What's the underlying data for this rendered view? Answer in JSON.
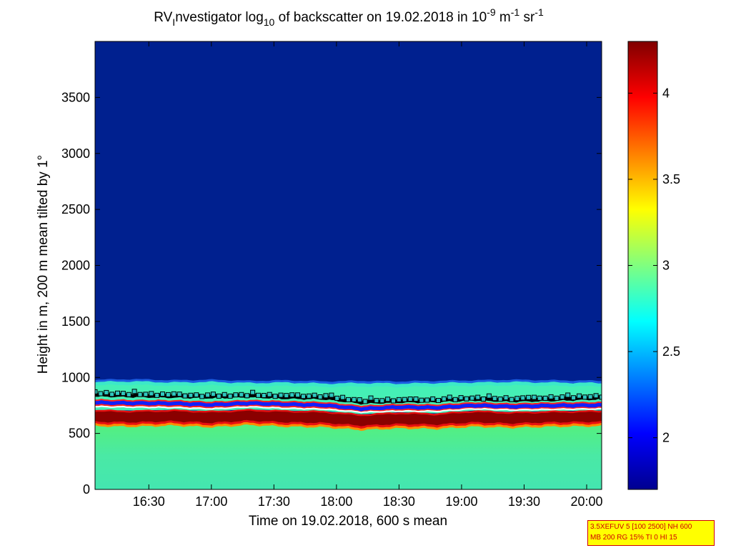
{
  "chart_data": {
    "type": "heatmap",
    "title": {
      "prefix": "RV",
      "sub1": "I",
      "part2": "nvestigator log",
      "sub2": "10",
      "part3": " of backscatter on 19.02.2018 in 10",
      "sup1": "-9",
      "part4": " m",
      "sup2": "-1",
      "part5": " sr",
      "sup3": "-1"
    },
    "xlabel": "Time on 19.02.2018, 600 s mean",
    "ylabel": "Height in m, 200 m mean tilted by 1°",
    "x_tick_labels": [
      "16:30",
      "17:00",
      "17:30",
      "18:00",
      "18:30",
      "19:00",
      "19:30",
      "20:00"
    ],
    "x_ticks_hours": [
      16.5,
      17.0,
      17.5,
      18.0,
      18.5,
      19.0,
      19.5,
      20.0
    ],
    "xlim_hours": [
      16.07,
      20.12
    ],
    "y_ticks": [
      0,
      500,
      1000,
      1500,
      2000,
      2500,
      3000,
      3500
    ],
    "ylim": [
      0,
      4000
    ],
    "colorbar": {
      "colormap": "jet",
      "range": [
        1.7,
        4.3
      ],
      "ticks": [
        2,
        2.5,
        3,
        3.5,
        4
      ],
      "tick_labels": [
        "2",
        "2.5",
        "3",
        "3.5",
        "4"
      ]
    },
    "layers": {
      "top_of_aerosol_layer_m": [
        960,
        965,
        955,
        960,
        950,
        955,
        945,
        950,
        945,
        950,
        955,
        960,
        955,
        950
      ],
      "dense_layer_top_m": [
        710,
        705,
        712,
        700,
        715,
        705,
        700,
        672,
        690,
        680,
        705,
        692,
        700,
        705
      ],
      "dense_layer_bottom_m": [
        590,
        585,
        595,
        580,
        600,
        585,
        580,
        555,
        570,
        565,
        585,
        575,
        585,
        590
      ],
      "series_times_hours": [
        16.07,
        16.38,
        16.7,
        17.0,
        17.3,
        17.6,
        17.9,
        18.2,
        18.5,
        18.8,
        19.1,
        19.4,
        19.7,
        20.12
      ],
      "upper_markers_black_cyan_m": [
        855,
        850,
        845,
        840,
        848,
        835,
        830,
        790,
        800,
        805,
        820,
        808,
        815,
        830
      ],
      "blue_red_line_m": [
        775,
        770,
        768,
        755,
        770,
        760,
        752,
        720,
        735,
        730,
        750,
        740,
        748,
        752
      ],
      "white_line_m": [
        740,
        735,
        732,
        720,
        738,
        725,
        718,
        690,
        700,
        698,
        720,
        710,
        715,
        720
      ],
      "low_green_background_m": [
        0,
        560
      ]
    }
  },
  "infobox": {
    "line1": "3.5XEFUV 5 [100 2500] NH 600",
    "line2": "MB 200 RG 15% TI 0 HI 15"
  },
  "colors": {
    "background_top": "#00208f",
    "green_layer": "#3cf0a0",
    "infobox_bg": "#ffff00",
    "infobox_text": "#d00000"
  }
}
